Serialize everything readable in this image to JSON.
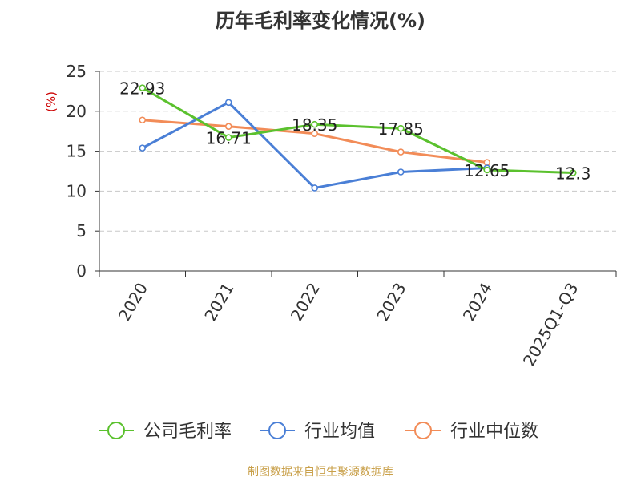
{
  "chart_data": {
    "type": "line",
    "title": "历年毛利率变化情况(%)",
    "ylabel": "(%)",
    "xlabel": "",
    "categories": [
      "2020",
      "2021",
      "2022",
      "2023",
      "2024",
      "2025Q1-Q3"
    ],
    "ylim": [
      0,
      25
    ],
    "yticks": [
      0,
      5,
      10,
      15,
      20,
      25
    ],
    "grid": true,
    "legend_position": "bottom",
    "series": [
      {
        "name": "公司毛利率",
        "color": "#5bc12e",
        "values": [
          22.93,
          16.71,
          18.35,
          17.85,
          12.65,
          12.3
        ],
        "labels": [
          "22.93",
          "16.71",
          "18.35",
          "17.85",
          "12.65",
          "12.3"
        ]
      },
      {
        "name": "行业均值",
        "color": "#4a7fd6",
        "values": [
          15.4,
          21.1,
          10.4,
          12.4,
          12.9,
          null
        ]
      },
      {
        "name": "行业中位数",
        "color": "#f28c58",
        "values": [
          18.9,
          18.1,
          17.2,
          14.9,
          13.6,
          null
        ]
      }
    ]
  },
  "source": "制图数据来自恒生聚源数据库"
}
